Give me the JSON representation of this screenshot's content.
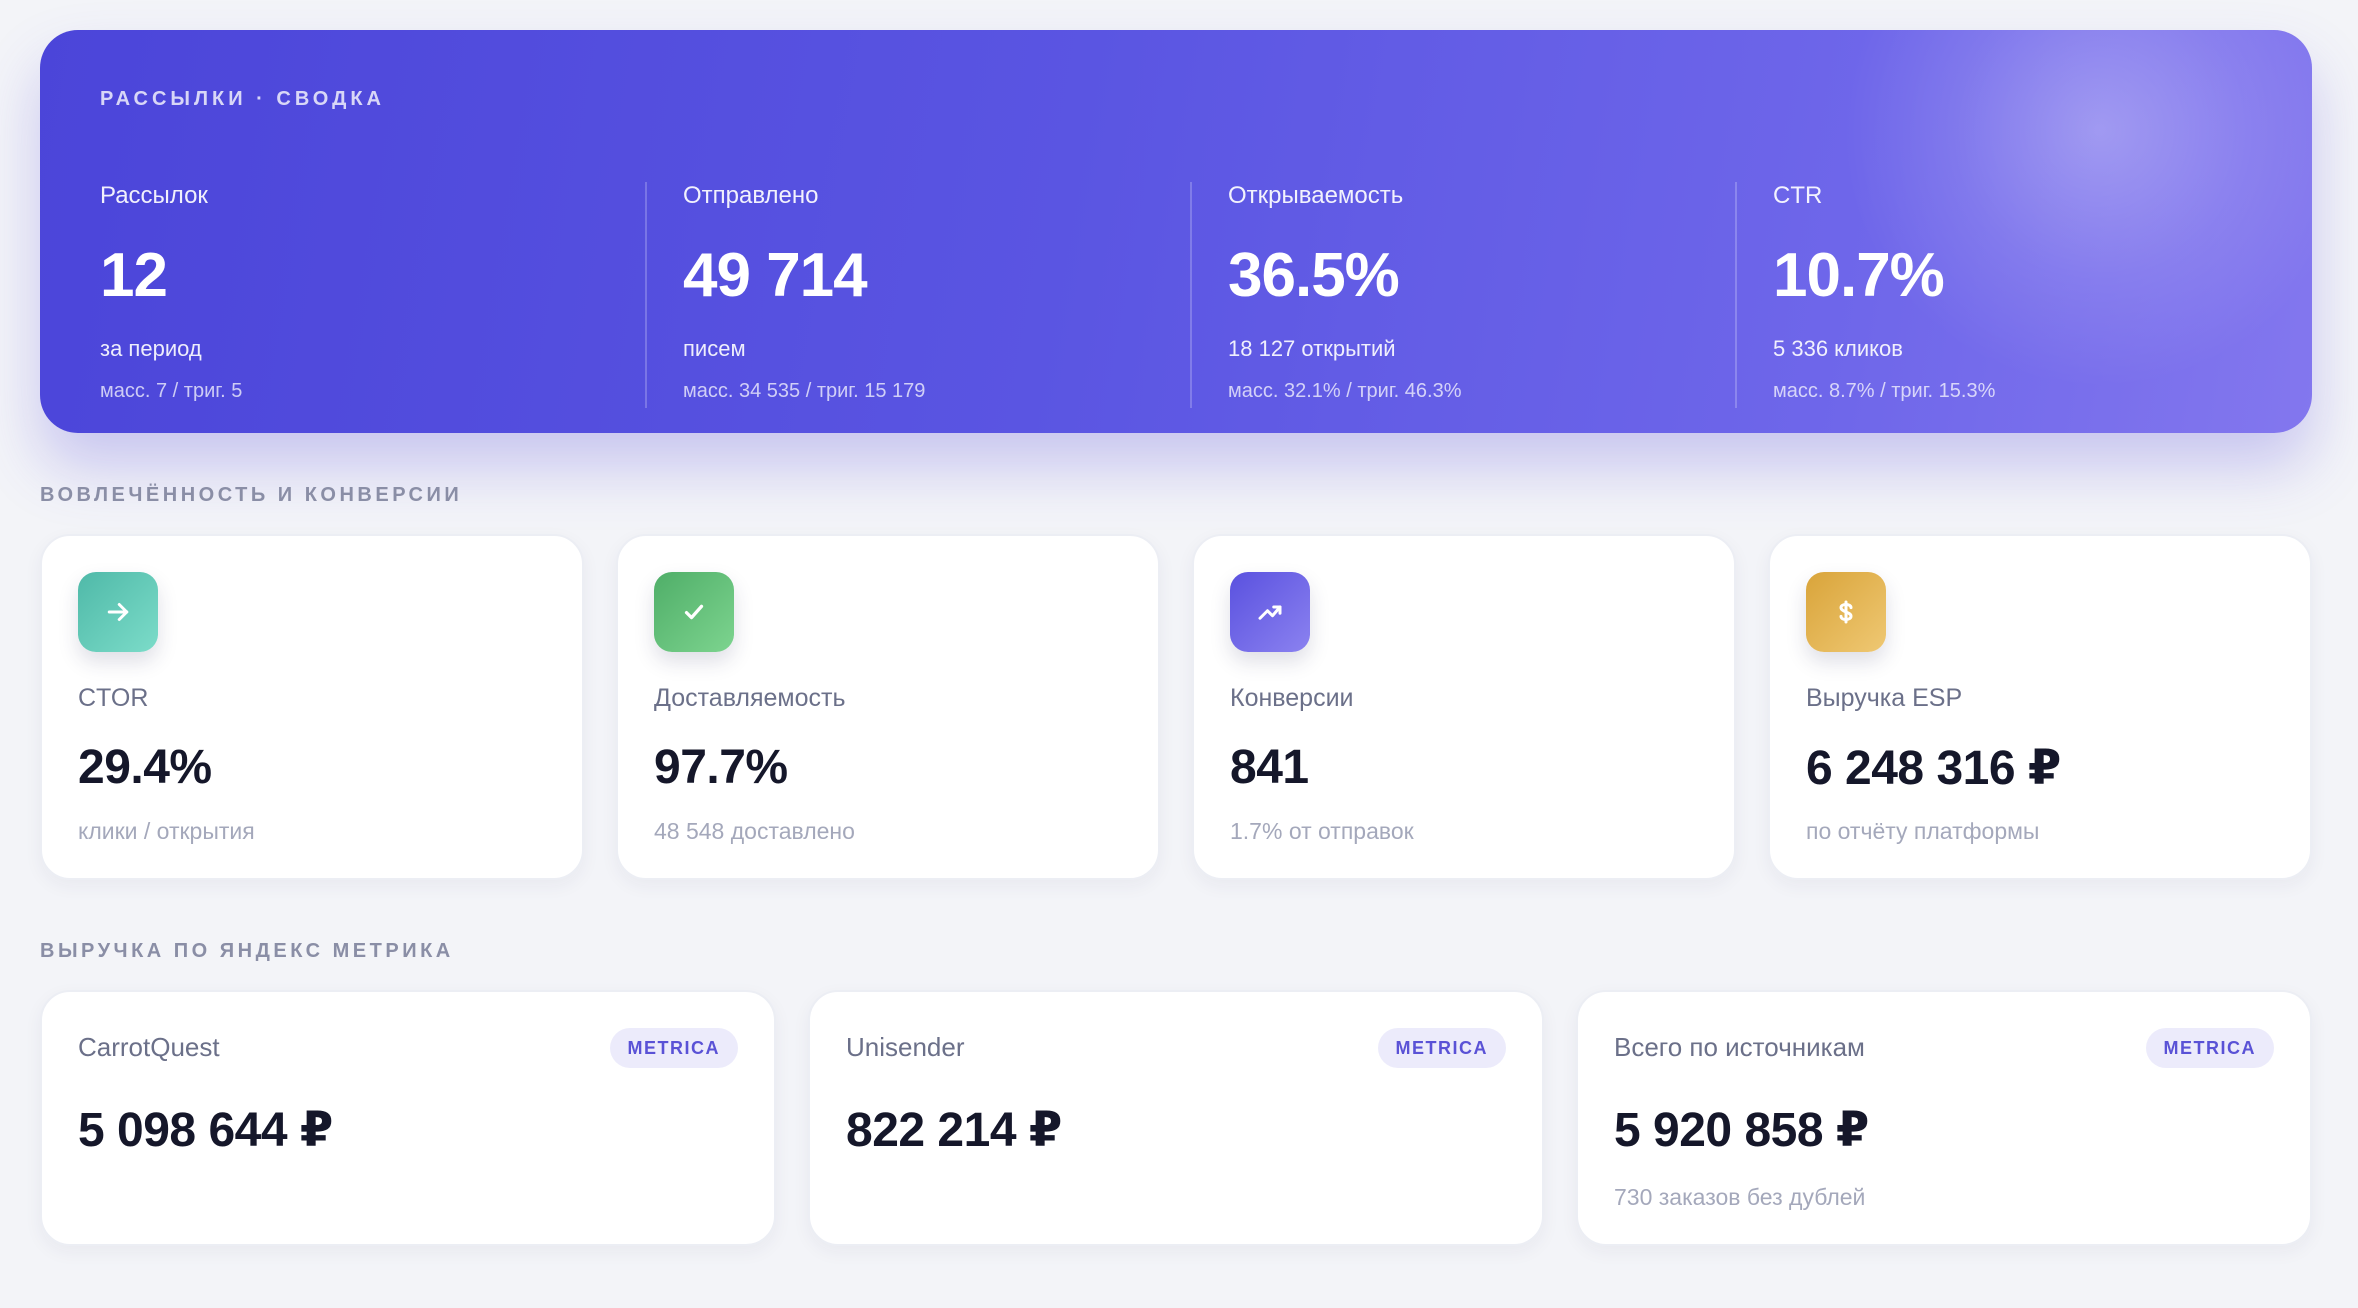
{
  "hero": {
    "eyebrow": "РАССЫЛКИ · СВОДКА",
    "stats": [
      {
        "label": "Рассылок",
        "value": "12",
        "sub": "за период",
        "sub2": "масс. 7 / триг. 5"
      },
      {
        "label": "Отправлено",
        "value": "49 714",
        "sub": "писем",
        "sub2": "масс. 34 535 / триг. 15 179"
      },
      {
        "label": "Открываемость",
        "value": "36.5%",
        "sub": "18 127 открытий",
        "sub2": "масс. 32.1% / триг. 46.3%"
      },
      {
        "label": "CTR",
        "value": "10.7%",
        "sub": "5 336 кликов",
        "sub2": "масс. 8.7% / триг. 15.3%"
      }
    ]
  },
  "engagement": {
    "title": "ВОВЛЕЧЁННОСТЬ И КОНВЕРСИИ",
    "cards": [
      {
        "icon": "arrow-right-icon",
        "label": "CTOR",
        "value": "29.4%",
        "sub": "клики / открытия",
        "color": "#5ec9b9"
      },
      {
        "icon": "check-icon",
        "label": "Доставляемость",
        "value": "97.7%",
        "sub": "48 548 доставлено",
        "color": "#5cc07a"
      },
      {
        "icon": "trending-up-icon",
        "label": "Конверсии",
        "value": "841",
        "sub": "1.7% от отправок",
        "color": "#6a62e6"
      },
      {
        "icon": "dollar-icon",
        "label": "Выручка ESP",
        "value": "6 248 316 ₽",
        "sub": "по отчёту платформы",
        "color": "#e2b24c"
      }
    ]
  },
  "metrica": {
    "title": "ВЫРУЧКА ПО ЯНДЕКС МЕТРИКА",
    "cards": [
      {
        "label": "CarrotQuest",
        "badge": "METRICA",
        "value": "5 098 644 ₽",
        "sub": ""
      },
      {
        "label": "Unisender",
        "badge": "METRICA",
        "value": "822 214 ₽",
        "sub": ""
      },
      {
        "label": "Всего по источникам",
        "badge": "METRICA",
        "value": "5 920 858 ₽",
        "sub": "730 заказов без дублей"
      }
    ]
  }
}
